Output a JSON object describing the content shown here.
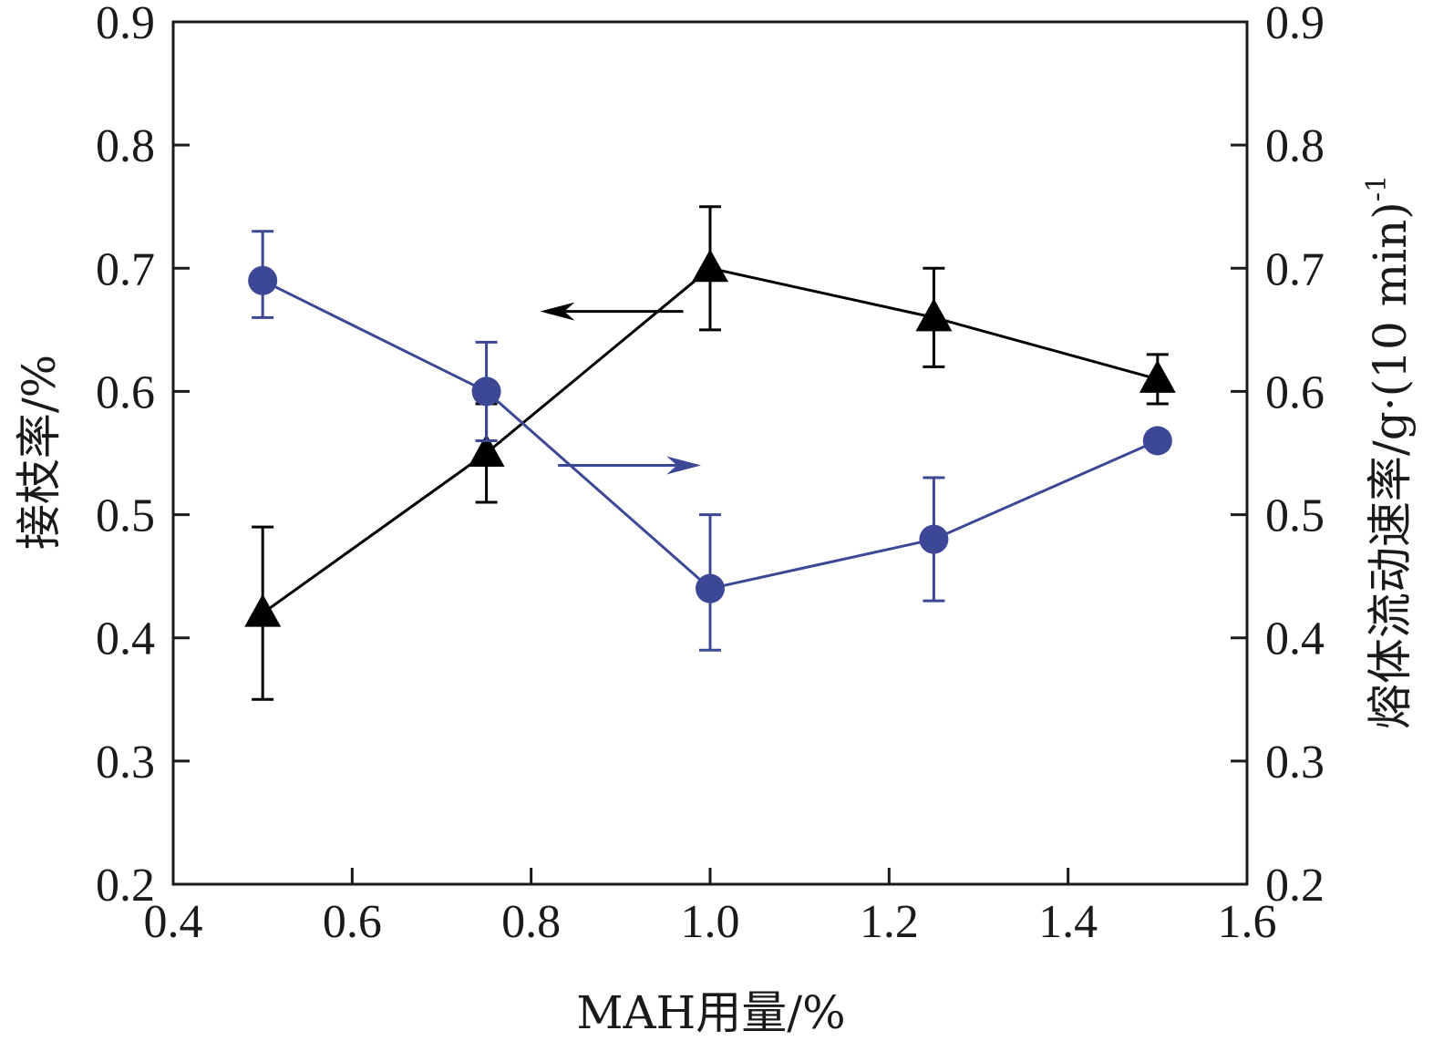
{
  "chart_data": {
    "type": "line",
    "xlabel": "MAH用量/%",
    "ylabel_left": "接枝率/%",
    "ylabel_right": "熔体流动速率/g·(10 min)",
    "ylabel_right_superscript": "-1",
    "xlim": [
      0.4,
      1.6
    ],
    "ylim_left": [
      0.2,
      0.9
    ],
    "ylim_right": [
      0.2,
      0.9
    ],
    "x_ticks": [
      "0.4",
      "0.6",
      "0.8",
      "1.0",
      "1.2",
      "1.4",
      "1.6"
    ],
    "y_ticks_left": [
      "0.2",
      "0.3",
      "0.4",
      "0.5",
      "0.6",
      "0.7",
      "0.8",
      "0.9"
    ],
    "y_ticks_right": [
      "0.2",
      "0.3",
      "0.4",
      "0.5",
      "0.6",
      "0.7",
      "0.8",
      "0.9"
    ],
    "grid": false,
    "series": [
      {
        "axis": "left",
        "marker": "triangle",
        "color": "#000000",
        "x": [
          0.5,
          0.75,
          1.0,
          1.25,
          1.5
        ],
        "y": [
          0.42,
          0.55,
          0.7,
          0.66,
          0.61
        ],
        "err_low": [
          0.35,
          0.51,
          0.65,
          0.62,
          0.59
        ],
        "err_high": [
          0.49,
          0.59,
          0.75,
          0.7,
          0.63
        ]
      },
      {
        "axis": "right",
        "marker": "circle",
        "color": "#3c4896",
        "x": [
          0.5,
          0.75,
          1.0,
          1.25,
          1.5
        ],
        "y": [
          0.69,
          0.6,
          0.44,
          0.48,
          0.56
        ],
        "err_low": [
          0.66,
          0.56,
          0.39,
          0.43,
          0.56
        ],
        "err_high": [
          0.73,
          0.64,
          0.5,
          0.53,
          0.56
        ]
      }
    ],
    "annotations": [
      {
        "type": "arrow",
        "direction": "left",
        "points_to": "left-axis",
        "color": "#000000",
        "at_y": 0.665,
        "x_from": 0.97,
        "x_to": 0.81
      },
      {
        "type": "arrow",
        "direction": "right",
        "points_to": "right-axis",
        "color": "#3c4896",
        "at_y": 0.54,
        "x_from": 0.83,
        "x_to": 0.99
      }
    ]
  }
}
